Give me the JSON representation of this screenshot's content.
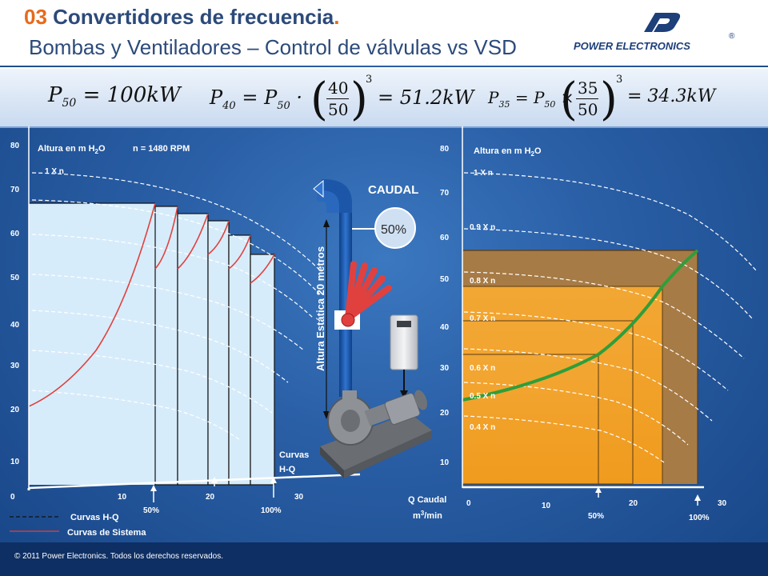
{
  "header": {
    "title_number": "03",
    "title_main": " Convertidores de frecuencia",
    "title_dot": ".",
    "subtitle": "Bombas y Ventiladores – Control de válvulas vs VSD",
    "logo_text": "POWER ELECTRONICS",
    "logo_reg": "®"
  },
  "formulas": {
    "f1_sym": "P",
    "f1_sub": "50",
    "f1_rhs": "= 100kW",
    "f2_sym": "P",
    "f2_sub": "40",
    "f2_mid": "= P",
    "f2_mid_sub": "50",
    "f2_dot": "·",
    "f2_num": "40",
    "f2_den": "50",
    "f2_exp": "3",
    "f2_rhs": "= 51.2kW",
    "f3_sym": "P",
    "f3_sub": "35",
    "f3_mid": "= P",
    "f3_mid_sub": "50",
    "f3_times": "×",
    "f3_num": "35",
    "f3_den": "50",
    "f3_exp": "3",
    "f3_rhs": "= 34.3kW"
  },
  "left_chart": {
    "y_ticks": [
      "80",
      "70",
      "60",
      "50",
      "40",
      "30",
      "20",
      "10",
      "0"
    ],
    "x_ticks": [
      "10",
      "20",
      "30"
    ],
    "label_altura": "Altura en m H",
    "label_altura_sub": "2",
    "label_altura_end": "O",
    "label_rpm": "n = 1480 RPM",
    "label_1xn": "1 X n",
    "label_curvas_hq_1": "Curvas",
    "label_curvas_hq_2": "H-Q",
    "marker_50": "50%",
    "marker_100": "100%",
    "legend_hq": "Curvas H-Q",
    "legend_sistema": "Curvas de Sistema"
  },
  "pump": {
    "caudal": "CAUDAL",
    "percent": "50%",
    "altura_estatica": "Altura Estática 20 metros"
  },
  "right_chart": {
    "y_ticks": [
      "80",
      "70",
      "60",
      "50",
      "40",
      "30",
      "20",
      "10"
    ],
    "x_ticks": [
      "0",
      "10",
      "20",
      "30"
    ],
    "label_altura": "Altura en m H",
    "label_altura_sub": "2",
    "label_altura_end": "O",
    "speed_labels": [
      "1 X n",
      "0.9 X n",
      "0.8 X n",
      "0.7 X n",
      "0.6 X n",
      "0.5 X n",
      "0.4 X n"
    ],
    "q_caudal": "Q Caudal",
    "q_unit": "m",
    "q_unit_sup": "3",
    "q_unit_end": "/min",
    "marker_50": "50%",
    "marker_100": "100%"
  },
  "footer": {
    "copyright": "© 2011 Power Electronics. Todos los derechos reservados."
  },
  "colors": {
    "accent_orange": "#e86a1a",
    "title_blue": "#2c4a7a",
    "system_curve_red": "#e0413f",
    "system_curve_green": "#2f9e3a",
    "area_orange": "#f1a32c",
    "area_brown": "#a77b46"
  }
}
